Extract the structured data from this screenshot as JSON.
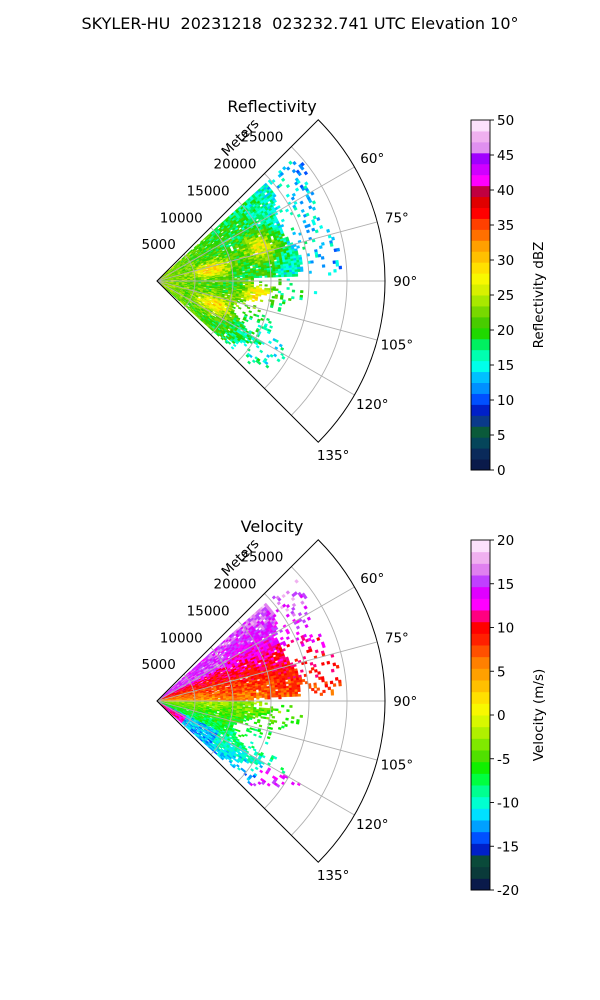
{
  "figure_title": "SKYLER-HU  20231218  023232.741 UTC Elevation 10°",
  "chart_data": [
    {
      "type": "heatmap",
      "projection": "polar-sector",
      "title": "Reflectivity",
      "radial_label": "Meters",
      "radial_ticks": [
        "5000",
        "10000",
        "15000",
        "20000",
        "25000"
      ],
      "radial_tick_values": [
        5000,
        10000,
        15000,
        20000,
        25000
      ],
      "rlim": [
        0,
        30000
      ],
      "angular_ticks": [
        "60°",
        "75°",
        "90°",
        "105°",
        "120°",
        "135°"
      ],
      "angular_tick_values": [
        60,
        75,
        90,
        105,
        120,
        135
      ],
      "theta_range": [
        45,
        135
      ],
      "grid": true,
      "colorbar": {
        "label": "Reflectivity dBZ",
        "min": 0,
        "max": 50,
        "ticks": [
          "0",
          "5",
          "10",
          "15",
          "20",
          "25",
          "30",
          "35",
          "40",
          "45",
          "50"
        ],
        "tick_values": [
          0,
          5,
          10,
          15,
          20,
          25,
          30,
          35,
          40,
          45,
          50
        ],
        "colormap": "pyart_NWSRef",
        "colors": [
          "#0a1a4a",
          "#0a2a5a",
          "#05455a",
          "#0a5a3a",
          "#0a3a8a",
          "#0020c8",
          "#0050ff",
          "#0090ff",
          "#00c0ff",
          "#00ffea",
          "#00ffb0",
          "#00f060",
          "#20d800",
          "#48cc00",
          "#78d800",
          "#a8e800",
          "#d8f000",
          "#f8f800",
          "#ffe000",
          "#ffc000",
          "#ffa000",
          "#ff7000",
          "#ff4000",
          "#ff0000",
          "#e00000",
          "#c00040",
          "#ff00ff",
          "#d000ff",
          "#a000ff",
          "#e090f0",
          "#f0b0f0",
          "#fce0fc"
        ]
      }
    },
    {
      "type": "heatmap",
      "projection": "polar-sector",
      "title": "Velocity",
      "radial_label": "Meters",
      "radial_ticks": [
        "5000",
        "10000",
        "15000",
        "20000",
        "25000"
      ],
      "radial_tick_values": [
        5000,
        10000,
        15000,
        20000,
        25000
      ],
      "rlim": [
        0,
        30000
      ],
      "angular_ticks": [
        "60°",
        "75°",
        "90°",
        "105°",
        "120°",
        "135°"
      ],
      "angular_tick_values": [
        60,
        75,
        90,
        105,
        120,
        135
      ],
      "theta_range": [
        45,
        135
      ],
      "grid": true,
      "colorbar": {
        "label": "Velocity (m/s)",
        "min": -20,
        "max": 20,
        "ticks": [
          "-20",
          "-15",
          "-10",
          "-5",
          "0",
          "5",
          "10",
          "15",
          "20"
        ],
        "tick_values": [
          -20,
          -15,
          -10,
          -5,
          0,
          5,
          10,
          15,
          20
        ],
        "colormap": "pyart_BuDRd18",
        "colors": [
          "#0a1a4a",
          "#0a3a3a",
          "#0a4a3a",
          "#0020c8",
          "#0050ff",
          "#00a0ff",
          "#00e0ff",
          "#00ffd0",
          "#00ff90",
          "#00ff40",
          "#10f000",
          "#50e000",
          "#80e800",
          "#b0f000",
          "#d8f800",
          "#f8f800",
          "#ffe000",
          "#ffc000",
          "#ffa000",
          "#ff8000",
          "#ff5000",
          "#ff2000",
          "#ff0000",
          "#ff0080",
          "#ff00ff",
          "#e000ff",
          "#c040ff",
          "#e080f0",
          "#f0b0f0",
          "#fce0fc"
        ]
      }
    }
  ]
}
